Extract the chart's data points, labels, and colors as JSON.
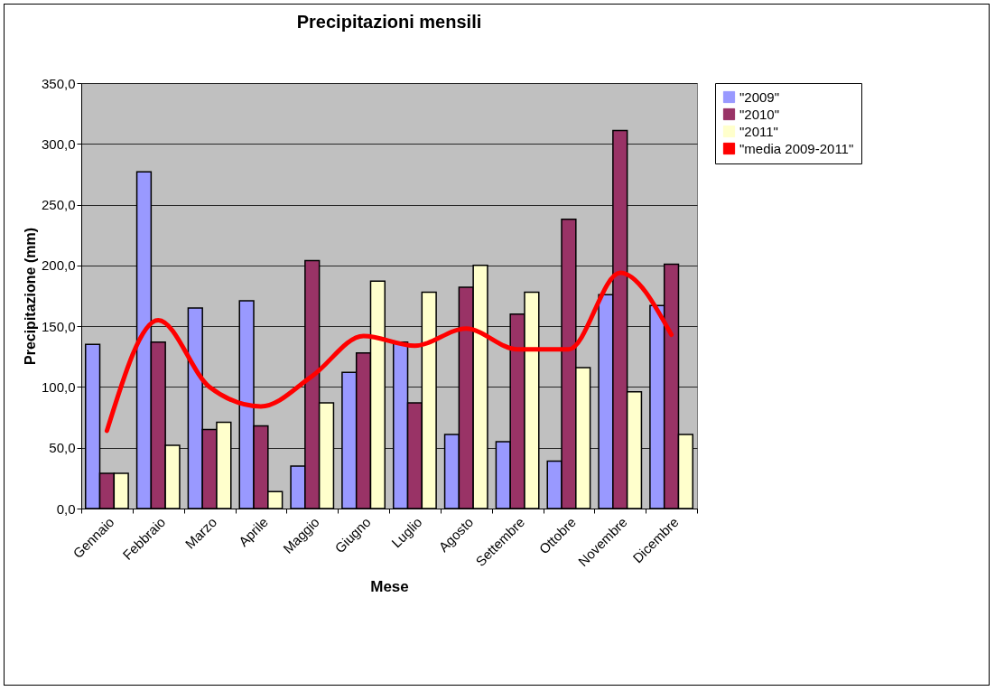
{
  "chart_data": {
    "type": "bar",
    "title": "Precipitazioni mensili",
    "xlabel": "Mese",
    "ylabel": "Precipitazione (mm)",
    "categories": [
      "Gennaio",
      "Febbraio",
      "Marzo",
      "Aprile",
      "Maggio",
      "Giugno",
      "Luglio",
      "Agosto",
      "Settembre",
      "Ottobre",
      "Novembre",
      "Dicembre"
    ],
    "series": [
      {
        "name": "\"2009\"",
        "color": "#9999ff",
        "values": [
          135,
          277,
          165,
          171,
          35,
          112,
          137,
          61,
          55,
          39,
          176,
          167
        ]
      },
      {
        "name": "\"2010\"",
        "color": "#993366",
        "values": [
          29,
          137,
          65,
          68,
          204,
          128,
          87,
          182,
          160,
          238,
          311,
          201
        ]
      },
      {
        "name": "\"2011\"",
        "color": "#ffffcc",
        "values": [
          29,
          52,
          71,
          14,
          87,
          187,
          178,
          200,
          178,
          116,
          96,
          61
        ]
      },
      {
        "name": "\"media 2009-2011\"",
        "type": "line",
        "color": "#ff0000",
        "values": [
          64,
          155,
          100,
          84,
          109,
          142,
          134,
          148,
          131,
          131,
          194,
          143
        ]
      }
    ],
    "ylim": [
      0,
      350
    ],
    "yticks": [
      {
        "value": 0,
        "label": "0,0"
      },
      {
        "value": 50,
        "label": "50,0"
      },
      {
        "value": 100,
        "label": "100,0"
      },
      {
        "value": 150,
        "label": "150,0"
      },
      {
        "value": 200,
        "label": "200,0"
      },
      {
        "value": 250,
        "label": "250,0"
      },
      {
        "value": 300,
        "label": "300,0"
      },
      {
        "value": 350,
        "label": "350,0"
      }
    ],
    "grid": "y",
    "legend": "right"
  }
}
